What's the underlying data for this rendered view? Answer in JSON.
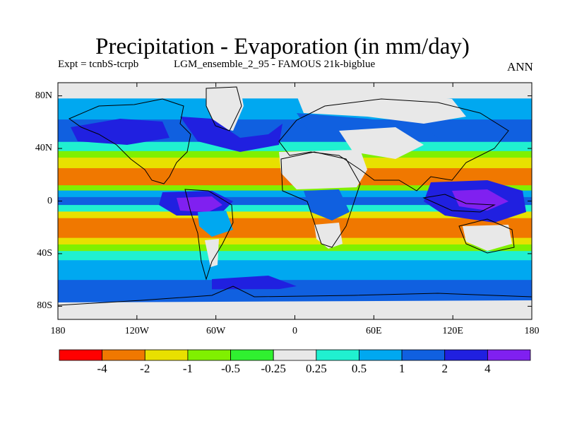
{
  "title": "Precipitation - Evaporation (in mm/day)",
  "subtitle_left": "Expt = tcnbS-tcrpb",
  "subtitle_mid": "LGM_ensemble_2_95 - FAMOUS 21k-bigblue",
  "subtitle_right": "ANN",
  "lat_labels": [
    "80N",
    "40N",
    "0",
    "40S",
    "80S"
  ],
  "lon_labels": [
    "180",
    "120W",
    "60W",
    "0",
    "60E",
    "120E",
    "180"
  ],
  "colorbar": {
    "colors": [
      "#ff0000",
      "#f07800",
      "#e8e000",
      "#80f000",
      "#30f030",
      "#e8e8e8",
      "#20f0d0",
      "#00a8f0",
      "#1060e0",
      "#2020e0",
      "#8020f0"
    ],
    "labels": [
      "-4",
      "-2",
      "-1",
      "-0.5",
      "-0.25",
      "0.25",
      "0.5",
      "1",
      "2",
      "4"
    ]
  },
  "bands": [
    {
      "lat": [
        90,
        78
      ],
      "color": "#e8e8e8"
    },
    {
      "lat": [
        78,
        62
      ],
      "color": "#00a8f0"
    },
    {
      "lat": [
        62,
        45
      ],
      "color": "#1060e0"
    },
    {
      "lat": [
        45,
        38
      ],
      "color": "#20f0d0"
    },
    {
      "lat": [
        38,
        33
      ],
      "color": "#80f000"
    },
    {
      "lat": [
        33,
        25
      ],
      "color": "#e8e000"
    },
    {
      "lat": [
        25,
        12
      ],
      "color": "#f07800"
    },
    {
      "lat": [
        12,
        8
      ],
      "color": "#80f000"
    },
    {
      "lat": [
        8,
        3
      ],
      "color": "#00a8f0"
    },
    {
      "lat": [
        3,
        -3
      ],
      "color": "#1060e0"
    },
    {
      "lat": [
        -3,
        -8
      ],
      "color": "#20f0d0"
    },
    {
      "lat": [
        -8,
        -13
      ],
      "color": "#e8e000"
    },
    {
      "lat": [
        -13,
        -28
      ],
      "color": "#f07800"
    },
    {
      "lat": [
        -28,
        -33
      ],
      "color": "#e8e000"
    },
    {
      "lat": [
        -33,
        -38
      ],
      "color": "#80f000"
    },
    {
      "lat": [
        -38,
        -45
      ],
      "color": "#20f0d0"
    },
    {
      "lat": [
        -45,
        -60
      ],
      "color": "#00a8f0"
    },
    {
      "lat": [
        -60,
        -70
      ],
      "color": "#1060e0"
    },
    {
      "lat": [
        -70,
        -90
      ],
      "color": "#e8e8e8"
    }
  ]
}
